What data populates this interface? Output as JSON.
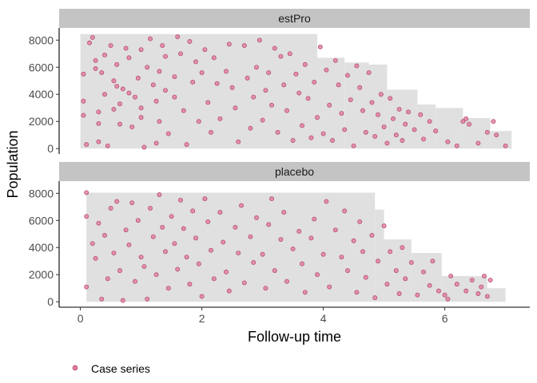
{
  "chart_data": {
    "type": "scatter",
    "xlabel": "Follow-up time",
    "ylabel": "Population",
    "xlim": [
      -0.35,
      7.4
    ],
    "xticks": [
      0,
      2,
      4,
      6
    ],
    "ylim": [
      -400,
      8900
    ],
    "yticks": [
      0,
      2000,
      4000,
      6000,
      8000
    ],
    "grid": false,
    "legend": {
      "position": "bottom-left",
      "entries": [
        "Case series"
      ]
    },
    "colors": {
      "point_fill": "#e07a9a",
      "point_stroke": "#b5476b",
      "risk_set": "#e0e0e0",
      "strip": "#c4c4c4",
      "axis": "#000000"
    },
    "panels": [
      {
        "label": "estPro",
        "risk_set": [
          {
            "x0": 0.0,
            "x1": 3.9,
            "y": 8450
          },
          {
            "x0": 3.9,
            "x1": 4.35,
            "y": 6700
          },
          {
            "x0": 4.35,
            "x1": 4.75,
            "y": 6350
          },
          {
            "x0": 4.75,
            "x1": 5.05,
            "y": 6200
          },
          {
            "x0": 5.05,
            "x1": 5.55,
            "y": 4350
          },
          {
            "x0": 5.55,
            "x1": 5.85,
            "y": 3250
          },
          {
            "x0": 5.85,
            "x1": 6.3,
            "y": 3000
          },
          {
            "x0": 6.3,
            "x1": 6.75,
            "y": 2250
          },
          {
            "x0": 6.75,
            "x1": 7.1,
            "y": 1300
          }
        ],
        "points": [
          [
            0.05,
            5500
          ],
          [
            0.05,
            3500
          ],
          [
            0.05,
            2450
          ],
          [
            0.1,
            300
          ],
          [
            0.15,
            7800
          ],
          [
            0.2,
            8200
          ],
          [
            0.25,
            6500
          ],
          [
            0.25,
            5900
          ],
          [
            0.3,
            2700
          ],
          [
            0.3,
            1850
          ],
          [
            0.3,
            500
          ],
          [
            0.35,
            5600
          ],
          [
            0.4,
            6900
          ],
          [
            0.4,
            4000
          ],
          [
            0.45,
            200
          ],
          [
            0.5,
            7600
          ],
          [
            0.55,
            5000
          ],
          [
            0.55,
            2900
          ],
          [
            0.6,
            6200
          ],
          [
            0.6,
            4600
          ],
          [
            0.65,
            3300
          ],
          [
            0.65,
            1800
          ],
          [
            0.7,
            4400
          ],
          [
            0.75,
            7400
          ],
          [
            0.8,
            6700
          ],
          [
            0.8,
            4100
          ],
          [
            0.85,
            1600
          ],
          [
            0.9,
            3800
          ],
          [
            0.95,
            5200
          ],
          [
            1.0,
            7300
          ],
          [
            1.0,
            3000
          ],
          [
            1.0,
            2300
          ],
          [
            1.05,
            100
          ],
          [
            1.1,
            6000
          ],
          [
            1.15,
            8100
          ],
          [
            1.2,
            4700
          ],
          [
            1.25,
            3500
          ],
          [
            1.25,
            400
          ],
          [
            1.3,
            5700
          ],
          [
            1.3,
            2000
          ],
          [
            1.35,
            7600
          ],
          [
            1.4,
            6800
          ],
          [
            1.4,
            4300
          ],
          [
            1.45,
            1100
          ],
          [
            1.55,
            5300
          ],
          [
            1.55,
            3800
          ],
          [
            1.6,
            8250
          ],
          [
            1.65,
            7000
          ],
          [
            1.7,
            2800
          ],
          [
            1.75,
            300
          ],
          [
            1.8,
            7900
          ],
          [
            1.85,
            4900
          ],
          [
            1.9,
            6400
          ],
          [
            1.95,
            2000
          ],
          [
            2.0,
            5600
          ],
          [
            2.05,
            7300
          ],
          [
            2.1,
            3400
          ],
          [
            2.15,
            1200
          ],
          [
            2.2,
            6700
          ],
          [
            2.25,
            4800
          ],
          [
            2.3,
            2200
          ],
          [
            2.4,
            5700
          ],
          [
            2.45,
            7700
          ],
          [
            2.5,
            4500
          ],
          [
            2.55,
            3000
          ],
          [
            2.6,
            500
          ],
          [
            2.7,
            7600
          ],
          [
            2.75,
            5200
          ],
          [
            2.8,
            1500
          ],
          [
            2.85,
            3800
          ],
          [
            2.9,
            6000
          ],
          [
            2.95,
            8000
          ],
          [
            3.0,
            2100
          ],
          [
            3.05,
            4300
          ],
          [
            3.1,
            5600
          ],
          [
            3.15,
            3200
          ],
          [
            3.2,
            7400
          ],
          [
            3.25,
            1200
          ],
          [
            3.3,
            6800
          ],
          [
            3.35,
            4700
          ],
          [
            3.4,
            2800
          ],
          [
            3.45,
            7000
          ],
          [
            3.5,
            600
          ],
          [
            3.55,
            5500
          ],
          [
            3.6,
            4100
          ],
          [
            3.65,
            1700
          ],
          [
            3.7,
            6200
          ],
          [
            3.75,
            3700
          ],
          [
            3.8,
            800
          ],
          [
            3.85,
            4900
          ],
          [
            3.9,
            2300
          ],
          [
            3.95,
            7500
          ],
          [
            4.0,
            1100
          ],
          [
            4.05,
            5800
          ],
          [
            4.1,
            3200
          ],
          [
            4.15,
            600
          ],
          [
            4.2,
            6500
          ],
          [
            4.25,
            4700
          ],
          [
            4.3,
            2600
          ],
          [
            4.35,
            1400
          ],
          [
            4.4,
            5400
          ],
          [
            4.45,
            3600
          ],
          [
            4.5,
            200
          ],
          [
            4.55,
            6100
          ],
          [
            4.6,
            4500
          ],
          [
            4.65,
            2800
          ],
          [
            4.7,
            1200
          ],
          [
            4.75,
            5600
          ],
          [
            4.8,
            3400
          ],
          [
            4.85,
            900
          ],
          [
            4.9,
            2500
          ],
          [
            4.95,
            4000
          ],
          [
            5.0,
            1600
          ],
          [
            5.05,
            400
          ],
          [
            5.1,
            3700
          ],
          [
            5.15,
            2200
          ],
          [
            5.2,
            1000
          ],
          [
            5.25,
            2900
          ],
          [
            5.3,
            600
          ],
          [
            5.35,
            1800
          ],
          [
            5.4,
            2700
          ],
          [
            5.5,
            1400
          ],
          [
            5.6,
            2500
          ],
          [
            5.65,
            700
          ],
          [
            5.75,
            2000
          ],
          [
            5.85,
            1300
          ],
          [
            6.05,
            500
          ],
          [
            6.2,
            200
          ],
          [
            6.3,
            2000
          ],
          [
            6.35,
            2200
          ],
          [
            6.4,
            1800
          ],
          [
            6.55,
            400
          ],
          [
            6.7,
            1200
          ],
          [
            6.8,
            2000
          ],
          [
            6.85,
            1000
          ],
          [
            7.0,
            200
          ]
        ]
      },
      {
        "label": "placebo",
        "risk_set": [
          {
            "x0": 0.1,
            "x1": 4.85,
            "y": 8050
          },
          {
            "x0": 4.85,
            "x1": 5.0,
            "y": 6800
          },
          {
            "x0": 5.0,
            "x1": 5.45,
            "y": 4600
          },
          {
            "x0": 5.45,
            "x1": 5.95,
            "y": 3600
          },
          {
            "x0": 5.95,
            "x1": 6.7,
            "y": 1900
          },
          {
            "x0": 6.7,
            "x1": 7.0,
            "y": 1000
          }
        ],
        "points": [
          [
            0.1,
            8050
          ],
          [
            0.1,
            6300
          ],
          [
            0.1,
            1100
          ],
          [
            0.2,
            4300
          ],
          [
            0.25,
            3200
          ],
          [
            0.3,
            5800
          ],
          [
            0.35,
            200
          ],
          [
            0.4,
            4900
          ],
          [
            0.45,
            1700
          ],
          [
            0.5,
            6900
          ],
          [
            0.55,
            3600
          ],
          [
            0.6,
            7400
          ],
          [
            0.65,
            2300
          ],
          [
            0.7,
            100
          ],
          [
            0.75,
            5300
          ],
          [
            0.8,
            4200
          ],
          [
            0.85,
            7300
          ],
          [
            0.9,
            1500
          ],
          [
            0.95,
            6000
          ],
          [
            1.0,
            3300
          ],
          [
            1.05,
            2600
          ],
          [
            1.1,
            200
          ],
          [
            1.15,
            6900
          ],
          [
            1.2,
            4800
          ],
          [
            1.25,
            2000
          ],
          [
            1.3,
            7900
          ],
          [
            1.35,
            5500
          ],
          [
            1.4,
            3700
          ],
          [
            1.45,
            1000
          ],
          [
            1.5,
            6300
          ],
          [
            1.55,
            4300
          ],
          [
            1.6,
            2400
          ],
          [
            1.65,
            7500
          ],
          [
            1.7,
            5400
          ],
          [
            1.75,
            3300
          ],
          [
            1.8,
            1300
          ],
          [
            1.85,
            6700
          ],
          [
            1.9,
            4700
          ],
          [
            1.95,
            2800
          ],
          [
            2.0,
            400
          ],
          [
            2.05,
            7600
          ],
          [
            2.1,
            5900
          ],
          [
            2.15,
            3800
          ],
          [
            2.2,
            1700
          ],
          [
            2.3,
            6600
          ],
          [
            2.35,
            4400
          ],
          [
            2.4,
            2200
          ],
          [
            2.45,
            800
          ],
          [
            2.55,
            5500
          ],
          [
            2.6,
            3600
          ],
          [
            2.65,
            7100
          ],
          [
            2.7,
            1400
          ],
          [
            2.8,
            4800
          ],
          [
            2.85,
            2900
          ],
          [
            2.9,
            6200
          ],
          [
            3.0,
            3500
          ],
          [
            3.05,
            1000
          ],
          [
            3.1,
            5700
          ],
          [
            3.15,
            7600
          ],
          [
            3.2,
            2300
          ],
          [
            3.3,
            4600
          ],
          [
            3.35,
            6600
          ],
          [
            3.4,
            1500
          ],
          [
            3.5,
            3900
          ],
          [
            3.6,
            5200
          ],
          [
            3.65,
            2800
          ],
          [
            3.7,
            700
          ],
          [
            3.8,
            4700
          ],
          [
            3.85,
            6100
          ],
          [
            3.9,
            2000
          ],
          [
            4.0,
            3500
          ],
          [
            4.05,
            7400
          ],
          [
            4.1,
            1100
          ],
          [
            4.2,
            5300
          ],
          [
            4.3,
            3300
          ],
          [
            4.35,
            6700
          ],
          [
            4.4,
            2300
          ],
          [
            4.5,
            4500
          ],
          [
            4.55,
            700
          ],
          [
            4.6,
            5900
          ],
          [
            4.65,
            3700
          ],
          [
            4.7,
            1800
          ],
          [
            4.8,
            4900
          ],
          [
            4.85,
            300
          ],
          [
            4.9,
            3000
          ],
          [
            5.0,
            5600
          ],
          [
            5.05,
            1300
          ],
          [
            5.1,
            3700
          ],
          [
            5.2,
            2300
          ],
          [
            5.25,
            600
          ],
          [
            5.3,
            4000
          ],
          [
            5.35,
            1700
          ],
          [
            5.45,
            2900
          ],
          [
            5.55,
            500
          ],
          [
            5.65,
            2200
          ],
          [
            5.75,
            1200
          ],
          [
            5.8,
            3000
          ],
          [
            5.9,
            800
          ],
          [
            6.0,
            500
          ],
          [
            6.05,
            200
          ],
          [
            6.1,
            1900
          ],
          [
            6.2,
            1300
          ],
          [
            6.35,
            800
          ],
          [
            6.45,
            1600
          ],
          [
            6.55,
            600
          ],
          [
            6.6,
            1100
          ],
          [
            6.65,
            1900
          ],
          [
            6.7,
            400
          ],
          [
            6.75,
            1600
          ]
        ]
      }
    ]
  }
}
